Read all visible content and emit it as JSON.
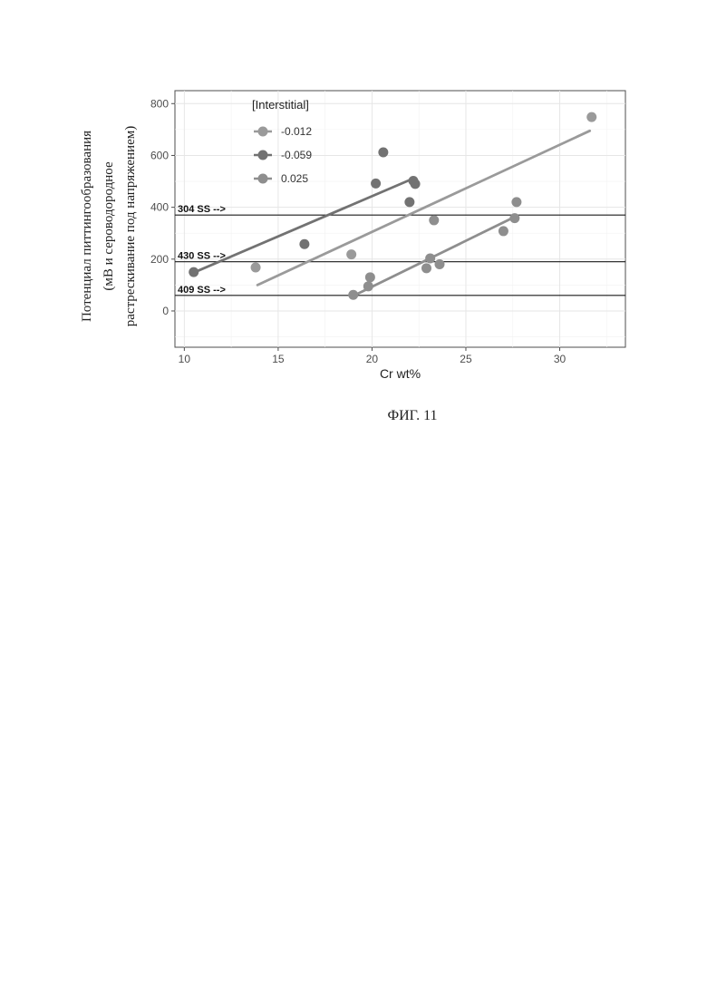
{
  "chart_data": {
    "type": "scatter",
    "xlabel": "Cr wt%",
    "ylabel_lines": [
      "Потенциал питтингообразования",
      "(мВ и сероводородное",
      "растрескивание под напряжением)"
    ],
    "xlim": [
      9.5,
      33.5
    ],
    "ylim": [
      -140,
      850
    ],
    "xticks": [
      10,
      15,
      20,
      25,
      30
    ],
    "yticks": [
      0,
      200,
      400,
      600,
      800
    ],
    "grid": true,
    "legend": {
      "title": "[Interstitial]",
      "placement": "top-left"
    },
    "series": [
      {
        "name": "-0.012",
        "color": "#9a9a9a",
        "points": [
          [
            13.8,
            168
          ],
          [
            18.9,
            218
          ],
          [
            31.7,
            748
          ]
        ],
        "fit": [
          [
            13.9,
            100
          ],
          [
            31.6,
            695
          ]
        ]
      },
      {
        "name": "-0.059",
        "color": "#727272",
        "points": [
          [
            10.5,
            150
          ],
          [
            16.4,
            258
          ],
          [
            20.2,
            492
          ],
          [
            20.6,
            612
          ],
          [
            22.0,
            420
          ],
          [
            22.2,
            502
          ],
          [
            22.3,
            490
          ]
        ],
        "fit": [
          [
            10.5,
            148
          ],
          [
            22.1,
            508
          ]
        ]
      },
      {
        "name": "0.025",
        "color": "#8e8e8e",
        "points": [
          [
            19.0,
            62
          ],
          [
            19.8,
            95
          ],
          [
            19.9,
            130
          ],
          [
            22.9,
            165
          ],
          [
            23.1,
            203
          ],
          [
            23.3,
            350
          ],
          [
            23.6,
            180
          ],
          [
            27.0,
            308
          ],
          [
            27.6,
            358
          ],
          [
            27.7,
            420
          ]
        ],
        "fit": [
          [
            19.0,
            58
          ],
          [
            27.6,
            363
          ]
        ]
      }
    ],
    "reference_lines": [
      {
        "label": "304 SS -->",
        "y": 370
      },
      {
        "label": "430 SS -->",
        "y": 190
      },
      {
        "label": "409 SS -->",
        "y": 60
      }
    ]
  },
  "caption": "ФИГ. 11"
}
